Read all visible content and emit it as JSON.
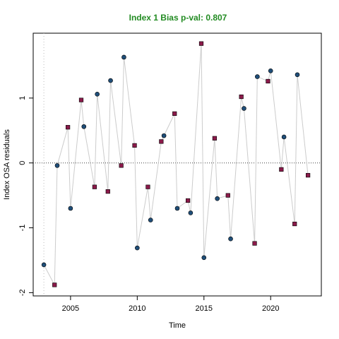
{
  "chart_data": {
    "type": "scatter",
    "title": "Index 1 Bias p-val: 0.807",
    "xlabel": "Time",
    "ylabel": "Index OSA residuals",
    "xlim": [
      2002.2,
      2023.8
    ],
    "ylim": [
      -2.05,
      2.0
    ],
    "x_ticks": [
      2005,
      2010,
      2015,
      2020
    ],
    "y_ticks": [
      -2,
      -1,
      0,
      1
    ],
    "reference_line_y": 0,
    "reference_line_x": 2003.0,
    "colors": {
      "title": "#228b22",
      "line": "#cccccc",
      "zero_line": "#555555",
      "vline": "#bbbbbb",
      "positive_marker": "#8b1a4a",
      "negative_marker": "#1f4e79"
    },
    "series": [
      {
        "marker": "circle",
        "color": "#1f4e79",
        "points": [
          {
            "x": 2003.0,
            "y": -1.57
          },
          {
            "x": 2004.0,
            "y": -0.04
          },
          {
            "x": 2005.0,
            "y": -0.7
          },
          {
            "x": 2006.0,
            "y": 0.56
          },
          {
            "x": 2007.0,
            "y": 1.06
          },
          {
            "x": 2008.0,
            "y": 1.27
          },
          {
            "x": 2009.0,
            "y": 1.63
          },
          {
            "x": 2010.0,
            "y": -1.31
          },
          {
            "x": 2011.0,
            "y": -0.88
          },
          {
            "x": 2012.0,
            "y": 0.42
          },
          {
            "x": 2013.0,
            "y": -0.7
          },
          {
            "x": 2014.0,
            "y": -0.77
          },
          {
            "x": 2015.0,
            "y": -1.46
          },
          {
            "x": 2016.0,
            "y": -0.55
          },
          {
            "x": 2017.0,
            "y": -1.17
          },
          {
            "x": 2018.0,
            "y": 0.84
          },
          {
            "x": 2019.0,
            "y": 1.33
          },
          {
            "x": 2020.0,
            "y": 1.42
          },
          {
            "x": 2021.0,
            "y": 0.4
          },
          {
            "x": 2022.0,
            "y": 1.36
          }
        ]
      },
      {
        "marker": "square",
        "color": "#8b1a4a",
        "points": [
          {
            "x": 2003.8,
            "y": -1.88
          },
          {
            "x": 2004.8,
            "y": 0.55
          },
          {
            "x": 2005.8,
            "y": 0.97
          },
          {
            "x": 2006.8,
            "y": -0.37
          },
          {
            "x": 2007.8,
            "y": -0.44
          },
          {
            "x": 2008.8,
            "y": -0.04
          },
          {
            "x": 2009.8,
            "y": 0.27
          },
          {
            "x": 2010.8,
            "y": -0.37
          },
          {
            "x": 2011.8,
            "y": 0.33
          },
          {
            "x": 2012.8,
            "y": 0.76
          },
          {
            "x": 2013.8,
            "y": -0.58
          },
          {
            "x": 2014.8,
            "y": 1.84
          },
          {
            "x": 2015.8,
            "y": 0.38
          },
          {
            "x": 2016.8,
            "y": -0.5
          },
          {
            "x": 2017.8,
            "y": 1.02
          },
          {
            "x": 2018.8,
            "y": -1.24
          },
          {
            "x": 2019.8,
            "y": 1.26
          },
          {
            "x": 2020.8,
            "y": -0.1
          },
          {
            "x": 2021.8,
            "y": -0.94
          },
          {
            "x": 2022.8,
            "y": -0.19
          }
        ]
      }
    ],
    "line_order": [
      {
        "s": 0,
        "i": 0
      },
      {
        "s": 1,
        "i": 0
      },
      {
        "s": 0,
        "i": 1
      },
      {
        "s": 1,
        "i": 1
      },
      {
        "s": 0,
        "i": 2
      },
      {
        "s": 1,
        "i": 2
      },
      {
        "s": 0,
        "i": 3
      },
      {
        "s": 1,
        "i": 3
      },
      {
        "s": 0,
        "i": 4
      },
      {
        "s": 1,
        "i": 4
      },
      {
        "s": 0,
        "i": 5
      },
      {
        "s": 1,
        "i": 5
      },
      {
        "s": 0,
        "i": 6
      },
      {
        "s": 1,
        "i": 6
      },
      {
        "s": 0,
        "i": 7
      },
      {
        "s": 1,
        "i": 7
      },
      {
        "s": 0,
        "i": 8
      },
      {
        "s": 1,
        "i": 8
      },
      {
        "s": 0,
        "i": 9
      },
      {
        "s": 1,
        "i": 9
      },
      {
        "s": 0,
        "i": 10
      },
      {
        "s": 1,
        "i": 10
      },
      {
        "s": 0,
        "i": 11
      },
      {
        "s": 1,
        "i": 11
      },
      {
        "s": 0,
        "i": 12
      },
      {
        "s": 1,
        "i": 12
      },
      {
        "s": 0,
        "i": 13
      },
      {
        "s": 1,
        "i": 13
      },
      {
        "s": 0,
        "i": 14
      },
      {
        "s": 1,
        "i": 14
      },
      {
        "s": 0,
        "i": 15
      },
      {
        "s": 1,
        "i": 15
      },
      {
        "s": 0,
        "i": 16
      },
      {
        "s": 1,
        "i": 16
      },
      {
        "s": 0,
        "i": 17
      },
      {
        "s": 1,
        "i": 17
      },
      {
        "s": 0,
        "i": 18
      },
      {
        "s": 1,
        "i": 18
      },
      {
        "s": 0,
        "i": 19
      },
      {
        "s": 1,
        "i": 19
      }
    ]
  }
}
